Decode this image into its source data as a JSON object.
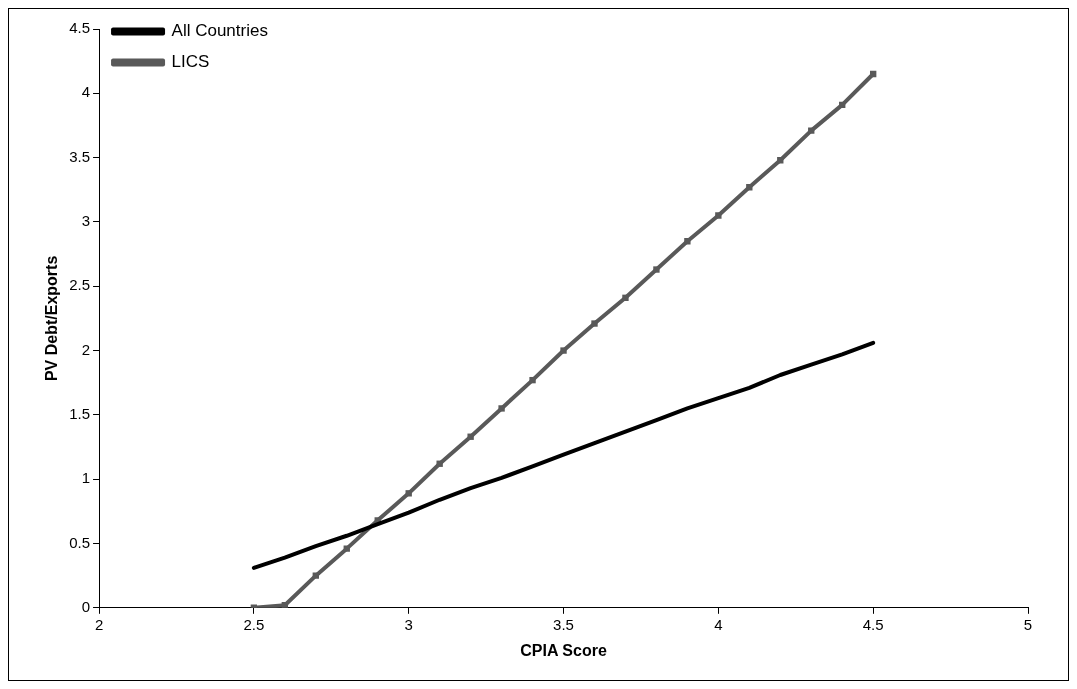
{
  "chart_data": {
    "type": "line",
    "xlabel": "CPIA Score",
    "ylabel": "PV Debt/Exports",
    "xlim": [
      2,
      5
    ],
    "xticks": [
      2,
      2.5,
      3,
      3.5,
      4,
      4.5,
      5
    ],
    "ylim": [
      0,
      4.5
    ],
    "yticks": [
      0,
      0.5,
      1,
      1.5,
      2,
      2.5,
      3,
      3.5,
      4,
      4.5
    ],
    "grid": false,
    "legend": "top left",
    "line_style": "solid",
    "x": [
      2.5,
      2.6,
      2.7,
      2.8,
      2.9,
      3.0,
      3.1,
      3.2,
      3.3,
      3.4,
      3.5,
      3.6,
      3.7,
      3.8,
      3.9,
      4.0,
      4.1,
      4.2,
      4.3,
      4.4,
      4.5
    ],
    "series": [
      {
        "name": "All Countries",
        "color": "#000000",
        "marker": "none",
        "values": [
          0.31,
          0.39,
          0.48,
          0.56,
          0.65,
          0.74,
          0.84,
          0.93,
          1.01,
          1.1,
          1.19,
          1.28,
          1.37,
          1.46,
          1.55,
          1.63,
          1.71,
          1.81,
          1.89,
          1.97,
          2.06
        ]
      },
      {
        "name": "LICS",
        "color": "#595959",
        "marker": "square",
        "values": [
          0,
          0.02,
          0.25,
          0.46,
          0.68,
          0.89,
          1.12,
          1.33,
          1.55,
          1.77,
          2.0,
          2.21,
          2.41,
          2.63,
          2.85,
          3.05,
          3.27,
          3.48,
          3.71,
          3.91,
          4.15
        ]
      }
    ]
  }
}
